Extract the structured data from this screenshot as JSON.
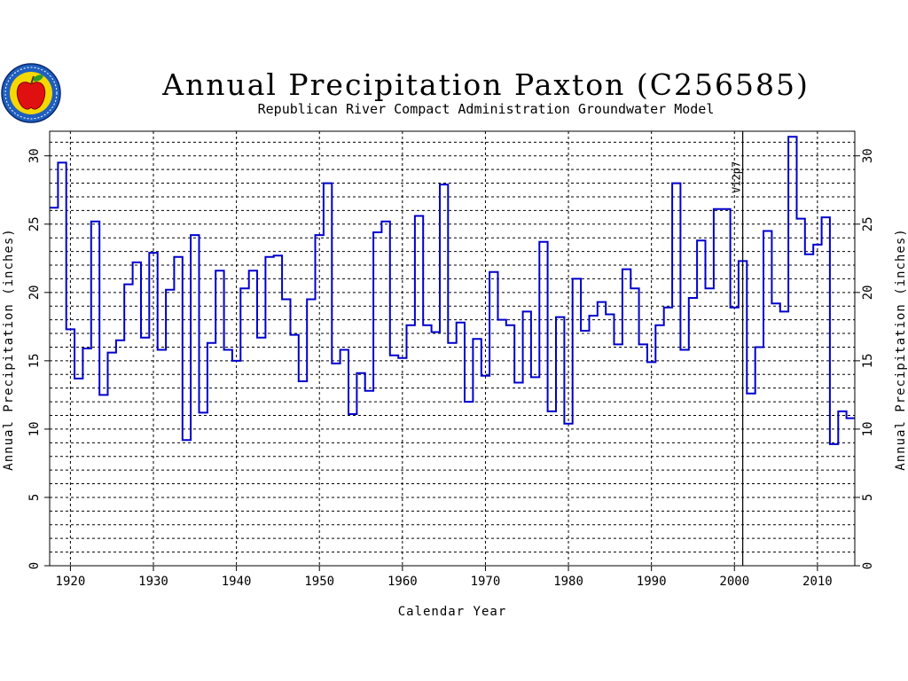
{
  "logo": {
    "icon": "apple-seal-icon",
    "colors": {
      "ring": "#1f5fbf",
      "inner": "#f5d800",
      "apple": "#e01010",
      "leaf": "#2a9a2a"
    }
  },
  "chart_data": {
    "type": "step",
    "title": "Annual Precipitation Paxton (C256585)",
    "subtitle": "Republican River Compact Administration Groundwater Model",
    "xlabel": "Calendar Year",
    "ylabel": "Annual Precipitation (inches)",
    "ylabel_right": "Annual Precipitation (inches)",
    "xlim": [
      1917.5,
      2014.5
    ],
    "ylim": [
      0,
      31.8
    ],
    "x_ticks": [
      1920,
      1930,
      1940,
      1950,
      1960,
      1970,
      1980,
      1990,
      2000,
      2010
    ],
    "y_ticks": [
      0,
      5,
      10,
      15,
      20,
      25,
      30
    ],
    "grid": true,
    "line_color": "#0000cc",
    "marker_line": {
      "x": 2001,
      "label": "V12p7"
    },
    "series": [
      {
        "x": [
          1918,
          1919,
          1920,
          1921,
          1922,
          1923,
          1924,
          1925,
          1926,
          1927,
          1928,
          1929,
          1930,
          1931,
          1932,
          1933,
          1934,
          1935,
          1936,
          1937,
          1938,
          1939,
          1940,
          1941,
          1942,
          1943,
          1944,
          1945,
          1946,
          1947,
          1948,
          1949,
          1950,
          1951,
          1952,
          1953,
          1954,
          1955,
          1956,
          1957,
          1958,
          1959,
          1960,
          1961,
          1962,
          1963,
          1964,
          1965,
          1966,
          1967,
          1968,
          1969,
          1970,
          1971,
          1972,
          1973,
          1974,
          1975,
          1976,
          1977,
          1978,
          1979,
          1980,
          1981,
          1982,
          1983,
          1984,
          1985,
          1986,
          1987,
          1988,
          1989,
          1990,
          1991,
          1992,
          1993,
          1994,
          1995,
          1996,
          1997,
          1998,
          1999,
          2000,
          2001,
          2002,
          2003,
          2004,
          2005,
          2006,
          2007,
          2008,
          2009,
          2010,
          2011,
          2012,
          2013,
          2014
        ],
        "values": [
          26.2,
          29.5,
          17.3,
          13.7,
          15.9,
          25.2,
          12.5,
          15.6,
          16.5,
          20.6,
          22.2,
          16.7,
          22.9,
          15.8,
          20.2,
          22.6,
          9.2,
          24.2,
          11.2,
          16.3,
          21.6,
          15.8,
          15.0,
          20.3,
          21.6,
          16.7,
          22.6,
          22.7,
          19.5,
          16.9,
          13.5,
          19.5,
          24.2,
          28.0,
          14.8,
          15.8,
          11.1,
          14.1,
          12.8,
          24.4,
          25.2,
          15.4,
          15.2,
          17.6,
          25.6,
          17.6,
          17.1,
          27.9,
          16.3,
          17.8,
          12.0,
          16.6,
          13.9,
          21.5,
          18.0,
          17.6,
          13.4,
          18.6,
          13.8,
          23.7,
          11.3,
          18.2,
          10.4,
          21.0,
          17.2,
          18.3,
          19.3,
          18.4,
          16.2,
          21.7,
          20.3,
          16.2,
          14.9,
          17.6,
          18.9,
          28.0,
          15.8,
          19.6,
          23.8,
          20.3,
          26.1,
          26.1,
          18.9,
          22.3,
          12.6,
          16.0,
          24.5,
          19.2,
          18.6,
          31.4,
          25.4,
          22.8,
          23.5,
          25.5,
          8.9,
          11.3,
          10.8
        ]
      }
    ]
  }
}
